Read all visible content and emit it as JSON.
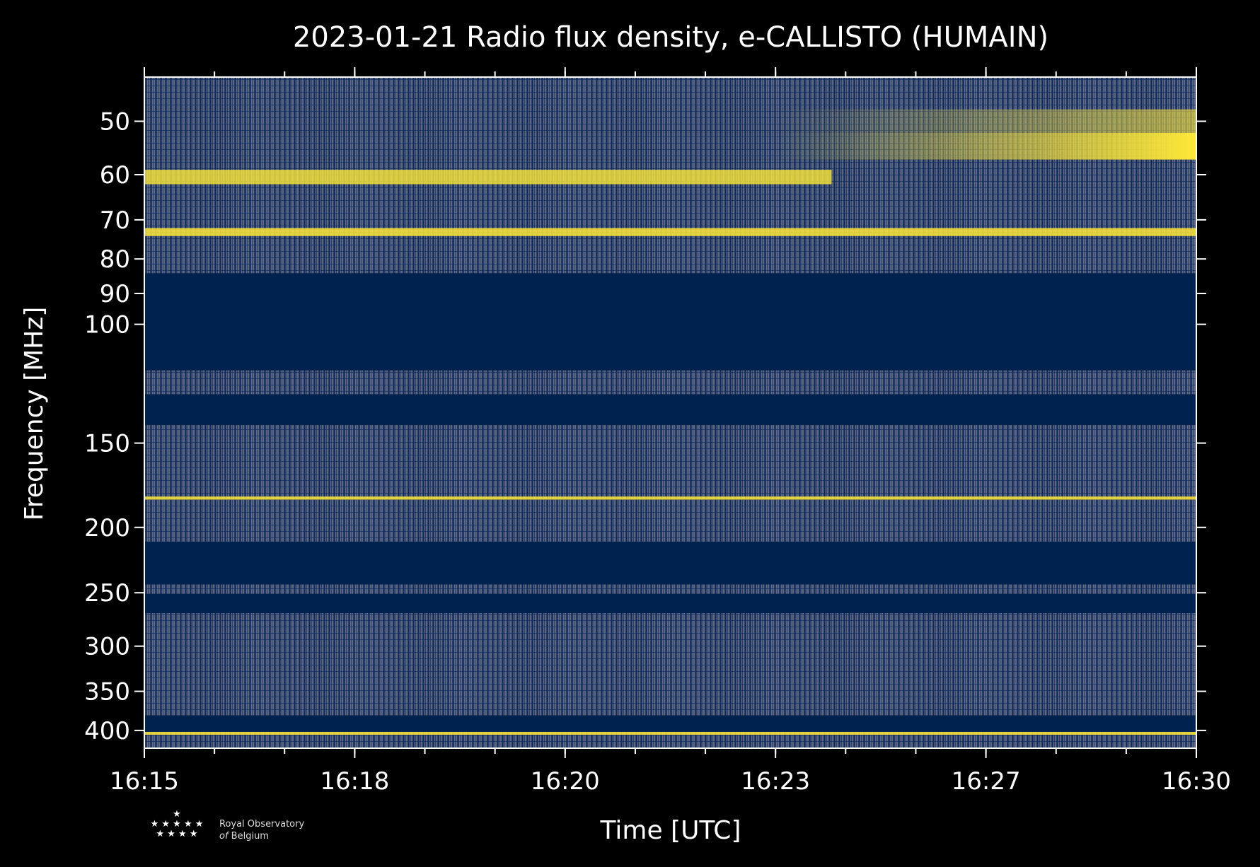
{
  "chart_data": {
    "type": "heatmap",
    "title": "2023-01-21 Radio flux density, e-CALLISTO (HUMAIN)",
    "xlabel": "Time [UTC]",
    "ylabel": "Frequency [MHz]",
    "x_range": [
      "16:15",
      "16:30"
    ],
    "y_range_mhz": [
      43,
      425
    ],
    "y_scale": "log",
    "y_inverted": true,
    "x_ticks": [
      "16:15",
      "16:18",
      "16:20",
      "16:23",
      "16:27",
      "16:30"
    ],
    "y_ticks": [
      50,
      60,
      70,
      80,
      90,
      100,
      150,
      200,
      250,
      300,
      350,
      400
    ],
    "colors": {
      "background": "#000000",
      "low": "#00224e",
      "mid": "#7c7b78",
      "high": "#fee838"
    },
    "bands": [
      {
        "from": 43,
        "to": 48,
        "level": "noise"
      },
      {
        "from": 48,
        "to": 52,
        "level": "noise-bright-late"
      },
      {
        "from": 52,
        "to": 57,
        "level": "bright-late"
      },
      {
        "from": 57,
        "to": 59,
        "level": "noise"
      },
      {
        "from": 59,
        "to": 62,
        "level": "bright-early"
      },
      {
        "from": 62,
        "to": 72,
        "level": "noise"
      },
      {
        "from": 72,
        "to": 74,
        "level": "bright"
      },
      {
        "from": 74,
        "to": 84,
        "level": "noise"
      },
      {
        "from": 84,
        "to": 117,
        "level": "low"
      },
      {
        "from": 117,
        "to": 127,
        "level": "noise"
      },
      {
        "from": 127,
        "to": 141,
        "level": "low"
      },
      {
        "from": 141,
        "to": 180,
        "level": "noise"
      },
      {
        "from": 180,
        "to": 182,
        "level": "bright"
      },
      {
        "from": 182,
        "to": 210,
        "level": "noise"
      },
      {
        "from": 210,
        "to": 243,
        "level": "low"
      },
      {
        "from": 243,
        "to": 251,
        "level": "noise"
      },
      {
        "from": 251,
        "to": 268,
        "level": "low"
      },
      {
        "from": 268,
        "to": 380,
        "level": "noise"
      },
      {
        "from": 380,
        "to": 402,
        "level": "low"
      },
      {
        "from": 402,
        "to": 406,
        "level": "bright"
      },
      {
        "from": 406,
        "to": 425,
        "level": "noise"
      }
    ]
  },
  "logo": {
    "line1": "Royal Observatory",
    "line2_italic": "of",
    "line2": "Belgium"
  }
}
